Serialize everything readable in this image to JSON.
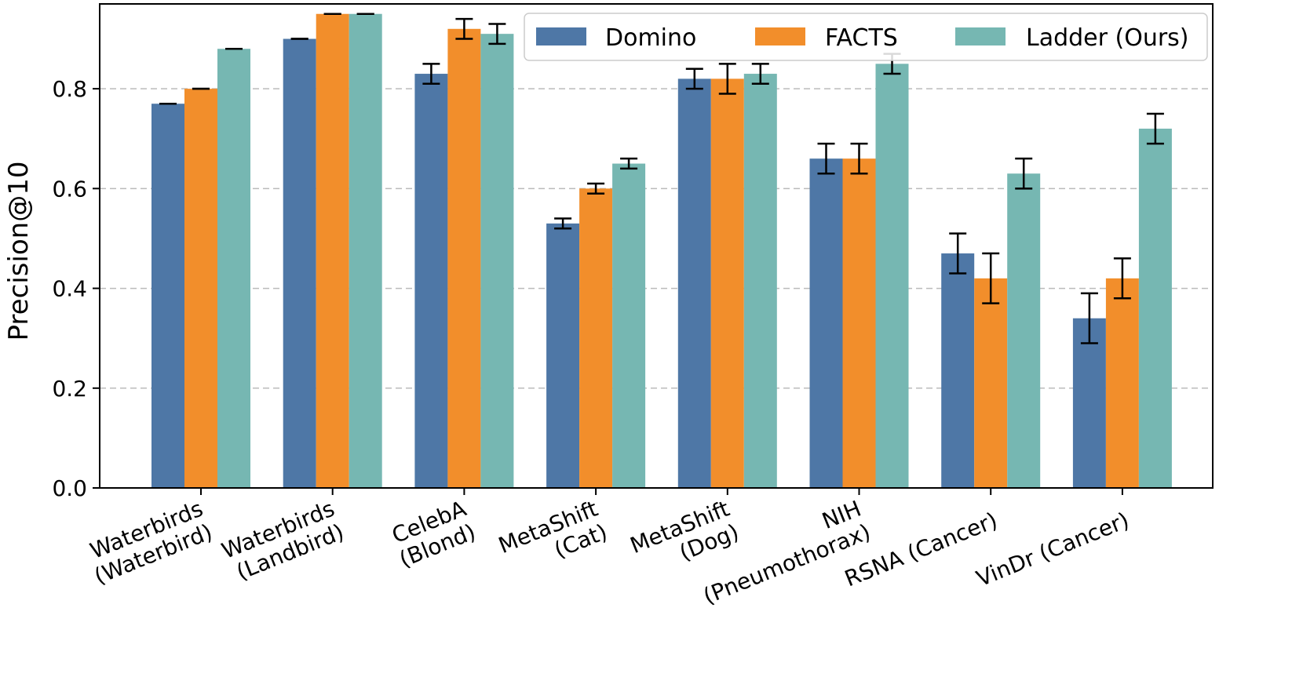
{
  "chart_data": {
    "type": "bar",
    "title": "",
    "xlabel": "",
    "ylabel": "Precision@10",
    "ylim": [
      0,
      0.97
    ],
    "yticks": [
      "0.0",
      "0.2",
      "0.4",
      "0.6",
      "0.8"
    ],
    "grid": "horizontal-dashed",
    "legend_position": "top-right",
    "categories": [
      [
        "Waterbirds",
        "(Waterbird)"
      ],
      [
        "Waterbirds",
        "(Landbird)"
      ],
      [
        "CelebA",
        "(Blond)"
      ],
      [
        "MetaShift",
        "(Cat)"
      ],
      [
        "MetaShift",
        "(Dog)"
      ],
      [
        "NIH",
        "(Pneumothorax)"
      ],
      [
        "RSNA (Cancer)"
      ],
      [
        "VinDr (Cancer)"
      ]
    ],
    "series": [
      {
        "name": "Domino",
        "color": "#4e77a6",
        "values": [
          0.77,
          0.9,
          0.83,
          0.53,
          0.82,
          0.66,
          0.47,
          0.34
        ],
        "errors": [
          0.0,
          0.0,
          0.02,
          0.01,
          0.02,
          0.03,
          0.04,
          0.05
        ]
      },
      {
        "name": "FACTS",
        "color": "#f28e2b",
        "values": [
          0.8,
          0.95,
          0.92,
          0.6,
          0.82,
          0.66,
          0.42,
          0.42
        ],
        "errors": [
          0.0,
          0.0,
          0.02,
          0.01,
          0.03,
          0.03,
          0.05,
          0.04
        ]
      },
      {
        "name": "Ladder (Ours)",
        "color": "#76b7b2",
        "values": [
          0.88,
          0.95,
          0.91,
          0.65,
          0.83,
          0.85,
          0.63,
          0.72
        ],
        "errors": [
          0.0,
          0.0,
          0.02,
          0.01,
          0.02,
          0.02,
          0.03,
          0.03
        ]
      }
    ]
  }
}
